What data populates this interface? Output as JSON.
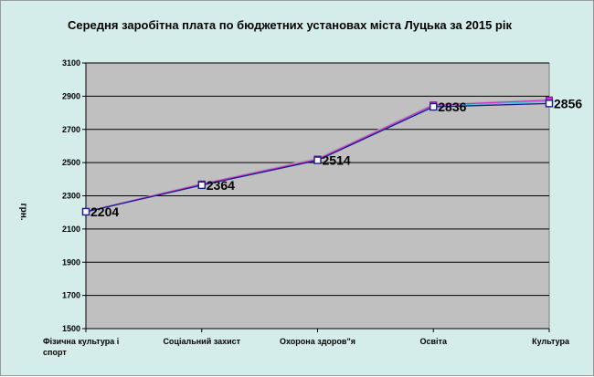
{
  "chart_data": {
    "type": "line",
    "title": "Середня заробітна плата по бюджетних установах міста Луцька за 2015 рік",
    "ylabel": "грн.",
    "xlabel": "",
    "categories": [
      [
        "Фізична культура і",
        "спорт"
      ],
      [
        "Соціальний захист"
      ],
      [
        "Охорона здоров\"я"
      ],
      [
        "Освіта"
      ],
      [
        "Культура"
      ]
    ],
    "ylim": [
      1500,
      3100
    ],
    "yticks": [
      1500,
      1700,
      1900,
      2100,
      2300,
      2500,
      2700,
      2900,
      3100
    ],
    "grid": true,
    "legend": "none",
    "series": [
      {
        "values": [
          2204,
          2364,
          2514,
          2836,
          2856
        ],
        "color": "#1a1a8c",
        "marker": "square-open",
        "labels": true
      },
      {
        "values": [
          2204,
          2370,
          2520,
          2846,
          2876
        ],
        "color": "#cc33cc",
        "marker": "square-filled",
        "labels": false
      },
      {
        "values": [
          2206,
          2374,
          2528,
          2852,
          2880
        ],
        "color": "#b0b0b0",
        "marker": "none",
        "labels": false
      },
      {
        "values": [
          2202,
          2368,
          2518,
          2842,
          2868
        ],
        "color": "#40c8d8",
        "marker": "none",
        "labels": false
      }
    ],
    "colors": {
      "plot_bg": "#c0c0c0",
      "frame_bg": "#d4edea",
      "gridline": "#000000"
    }
  }
}
